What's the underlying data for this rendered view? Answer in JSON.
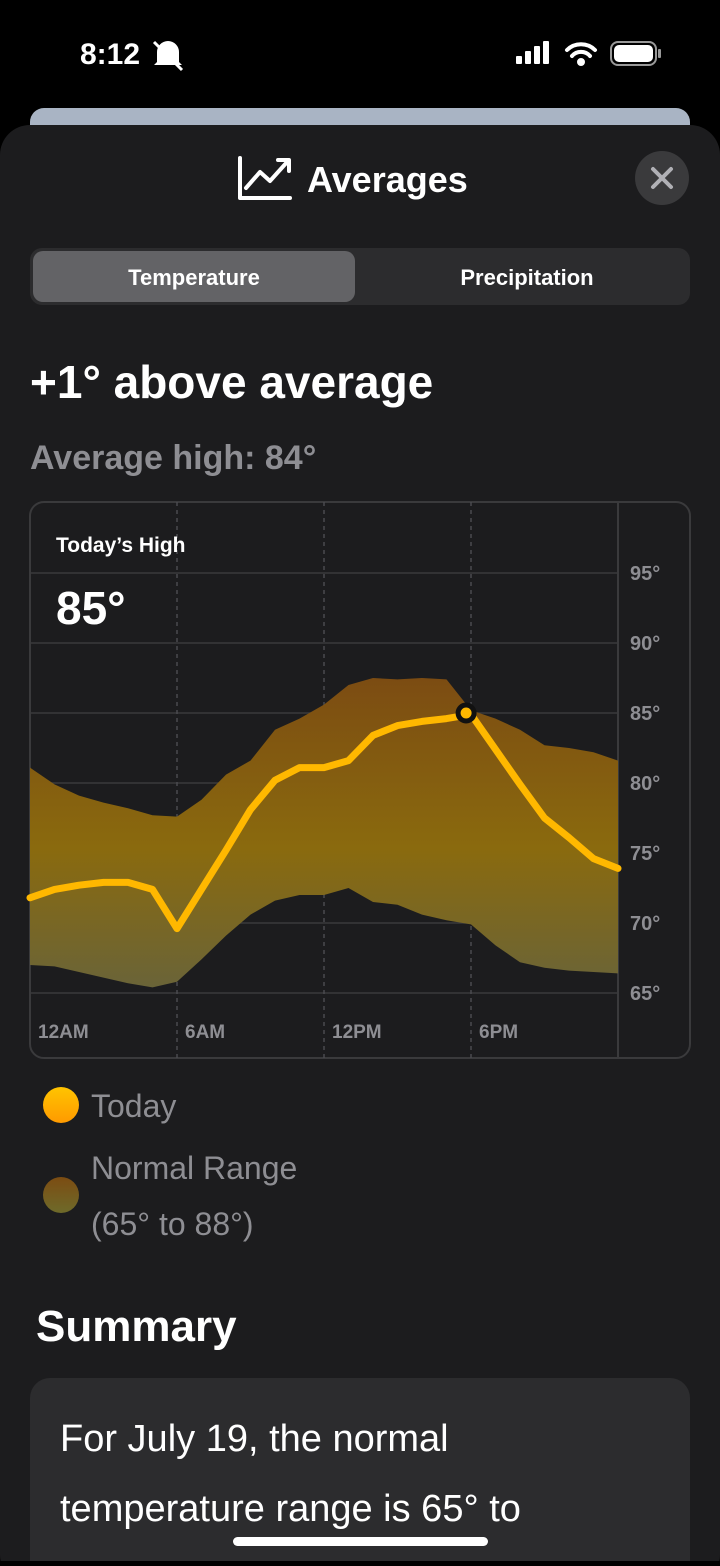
{
  "status_bar": {
    "time": "8:12"
  },
  "header": {
    "title": "Averages"
  },
  "tabs": [
    "Temperature",
    "Precipitation"
  ],
  "headline": "+1° above average",
  "subheadline": "Average high: 84°",
  "chart_data": {
    "type": "line",
    "annotation_title": "Today’s High",
    "annotation_value": "85°",
    "x": [
      0,
      1,
      2,
      3,
      4,
      5,
      6,
      7,
      8,
      9,
      10,
      11,
      12,
      13,
      14,
      15,
      16,
      17,
      18,
      19,
      20,
      21,
      22,
      23,
      24
    ],
    "xlim": [
      0,
      24
    ],
    "xticks": [
      {
        "value": 0,
        "label": "12AM"
      },
      {
        "value": 6,
        "label": "6AM"
      },
      {
        "value": 12,
        "label": "12PM"
      },
      {
        "value": 18,
        "label": "6PM"
      }
    ],
    "ylim": [
      65,
      95
    ],
    "yticks": [
      {
        "value": 65,
        "label": "65°"
      },
      {
        "value": 70,
        "label": "70°"
      },
      {
        "value": 75,
        "label": "75°"
      },
      {
        "value": 80,
        "label": "80°"
      },
      {
        "value": 85,
        "label": "85°"
      },
      {
        "value": 90,
        "label": "90°"
      },
      {
        "value": 95,
        "label": "95°"
      }
    ],
    "grid": true,
    "series": [
      {
        "name": "Today",
        "color": "#ffb800",
        "values": [
          71.8,
          72.4,
          72.7,
          72.9,
          72.9,
          72.4,
          69.6,
          72.4,
          75.2,
          78.1,
          80.2,
          81.1,
          81.1,
          81.6,
          83.4,
          84.1,
          84.4,
          84.6,
          84.9,
          82.4,
          79.9,
          77.5,
          76.1,
          74.6,
          73.9
        ]
      },
      {
        "name": "Normal Range",
        "color": "#8a6410",
        "high": [
          81.1,
          79.9,
          79.1,
          78.6,
          78.2,
          77.7,
          77.6,
          78.8,
          80.6,
          81.6,
          83.8,
          84.6,
          85.6,
          87.0,
          87.5,
          87.4,
          87.5,
          87.4,
          85.2,
          84.6,
          83.8,
          82.7,
          82.5,
          82.2,
          81.6
        ],
        "low": [
          67.0,
          66.9,
          66.5,
          66.1,
          65.7,
          65.4,
          65.8,
          67.4,
          69.1,
          70.6,
          71.6,
          72.0,
          72.0,
          72.5,
          71.5,
          71.3,
          70.6,
          70.2,
          69.9,
          68.4,
          67.2,
          66.8,
          66.6,
          66.5,
          66.4
        ]
      }
    ],
    "highlight": {
      "x": 17.8,
      "value": 85
    },
    "range_label": "(65° to 88°)"
  },
  "summary": {
    "title": "Summary",
    "lines": [
      "For July 19, the normal",
      "temperature range is 65° to"
    ]
  }
}
